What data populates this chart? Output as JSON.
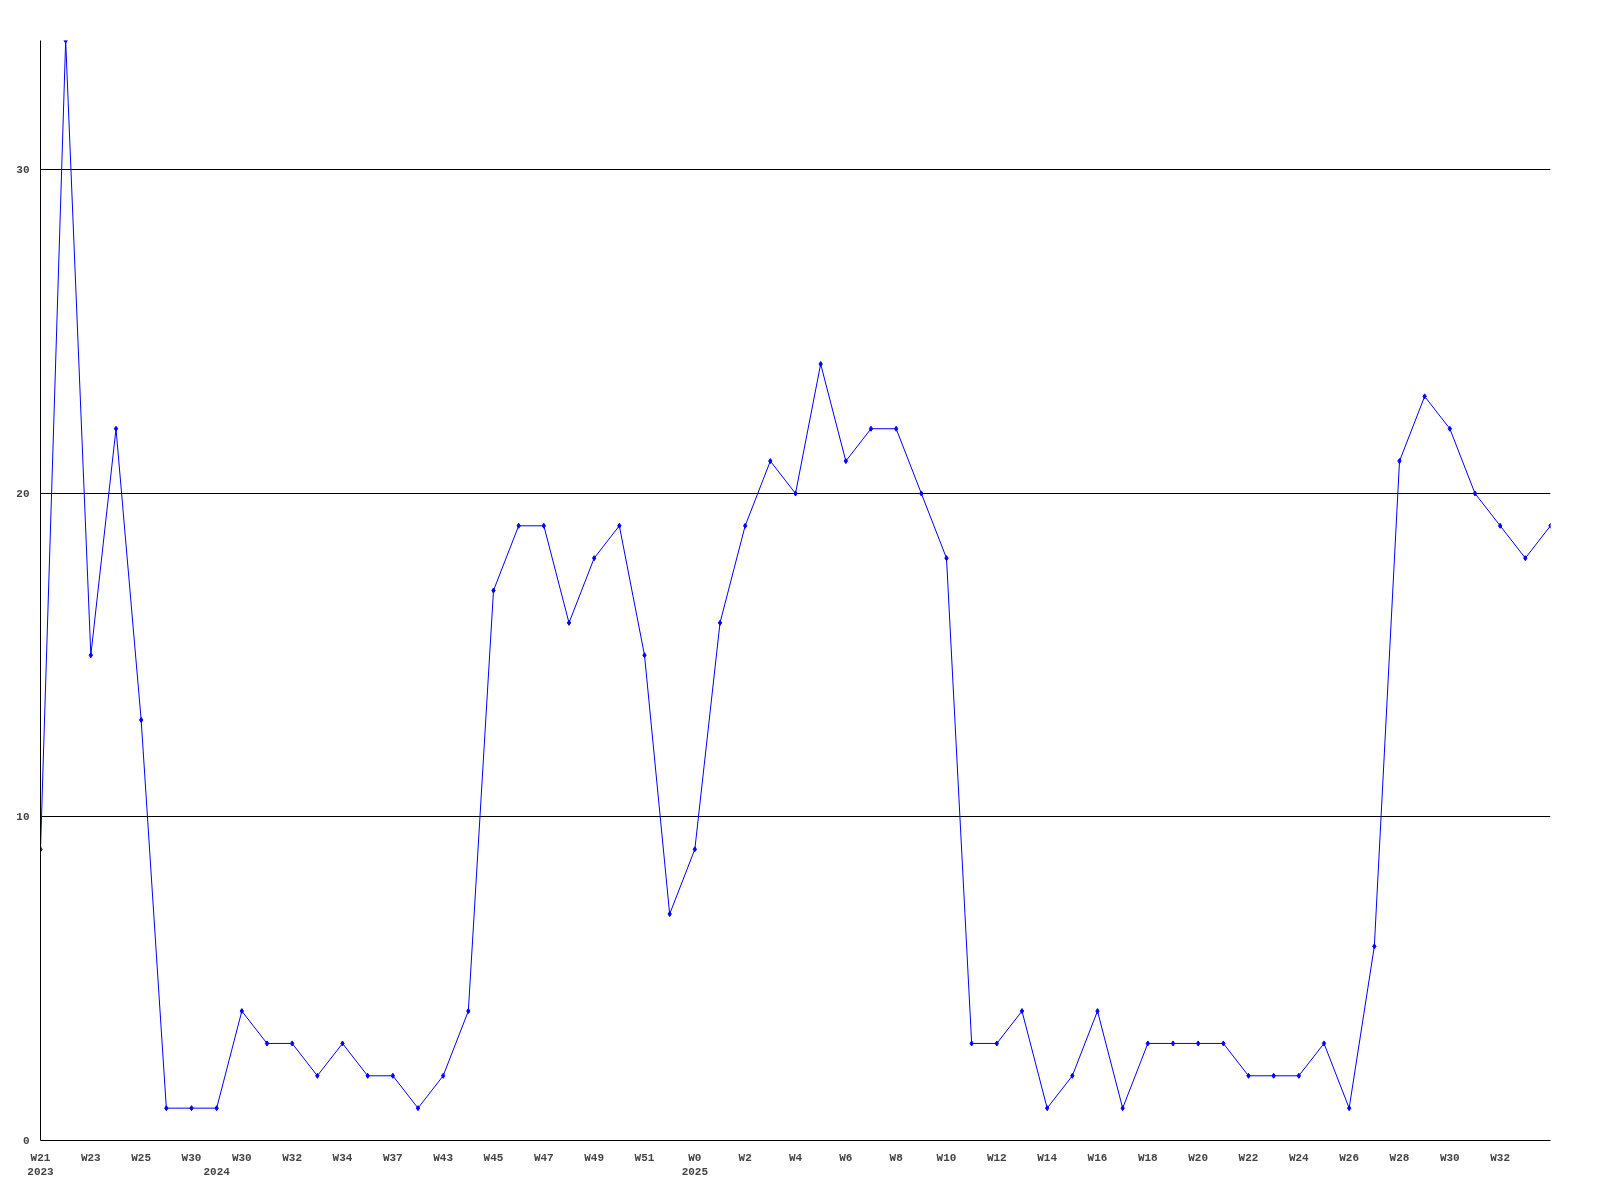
{
  "chart_data": {
    "type": "line",
    "categories": [
      "W21\n2023",
      null,
      "W23",
      null,
      "W25",
      null,
      "W30",
      "\n2024",
      "W30",
      null,
      "W32",
      null,
      "W34",
      null,
      "W37",
      null,
      "W43",
      null,
      "W45",
      null,
      "W47",
      null,
      "W49",
      null,
      "W51",
      null,
      "W0\n2025",
      null,
      "W2",
      null,
      "W4",
      null,
      "W6",
      null,
      "W8",
      null,
      "W10",
      null,
      "W12",
      null,
      "W14",
      null,
      "W16",
      null,
      "W18",
      null,
      "W20",
      null,
      "W22",
      null,
      "W24",
      null,
      "W26",
      null,
      "W28",
      null,
      "W30",
      null,
      "W32",
      null,
      null
    ],
    "series": [
      {
        "color": "#0000ff",
        "values": [
          9,
          34,
          15,
          22,
          13,
          1,
          1,
          1,
          4,
          3,
          3,
          2,
          3,
          2,
          2,
          1,
          2,
          4,
          17,
          19,
          19,
          16,
          18,
          19,
          15,
          7,
          9,
          16,
          19,
          21,
          20,
          24,
          21,
          22,
          22,
          20,
          18,
          3,
          3,
          4,
          1,
          2,
          4,
          1,
          3,
          3,
          3,
          3,
          2,
          2,
          2,
          3,
          1,
          6,
          21,
          23,
          22,
          20,
          19,
          18,
          19
        ]
      }
    ],
    "ylim": [
      0,
      34
    ],
    "yticks": [
      0,
      10,
      20,
      30
    ],
    "grid": "y",
    "marker": "diamond",
    "line_style": "solid"
  }
}
